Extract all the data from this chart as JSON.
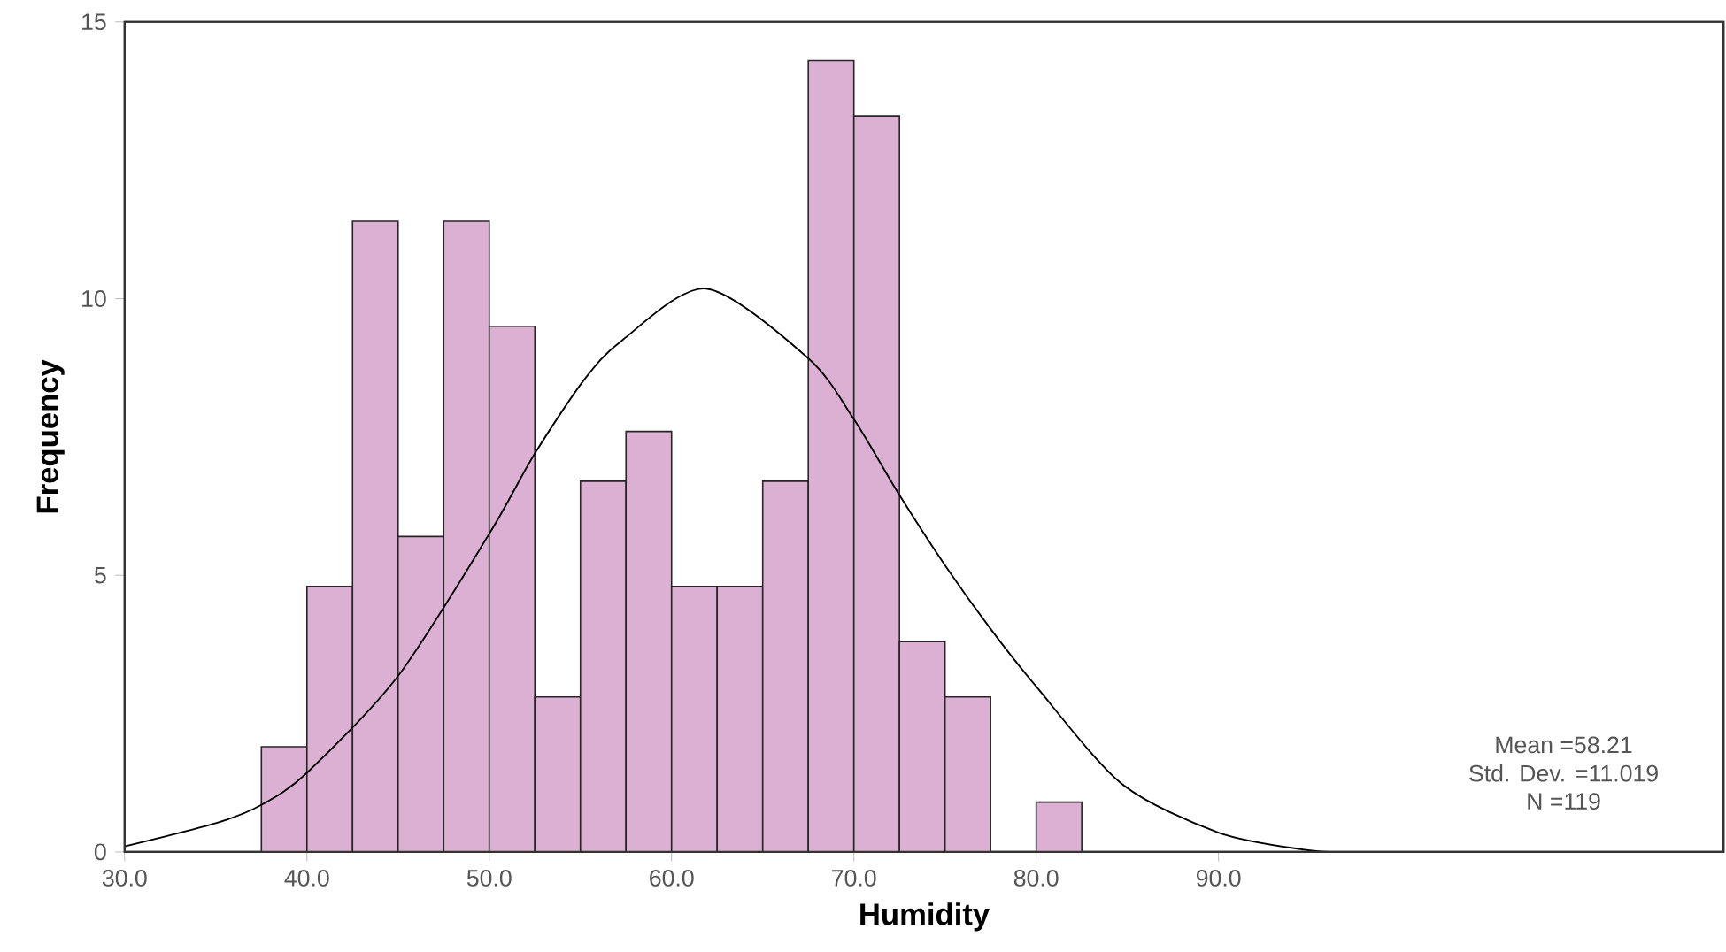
{
  "chart_data": {
    "type": "histogram",
    "xlabel": "Humidity",
    "ylabel": "Frequency",
    "bins": [
      37.5,
      40,
      42.5,
      45,
      47.5,
      50,
      52.5,
      55,
      57.5,
      60,
      62.5,
      65,
      67.5,
      70,
      72.5,
      75,
      77.5,
      80,
      82.5
    ],
    "values": [
      1.9,
      4.8,
      11.4,
      5.7,
      11.4,
      9.5,
      2.8,
      6.7,
      7.6,
      4.8,
      4.8,
      6.7,
      14.3,
      13.3,
      3.8,
      2.8,
      0,
      0.9
    ],
    "color": "#dcb0d2",
    "series": [
      {
        "type": "line",
        "color": "#000000",
        "x": [
          30,
          35,
          37.5,
          40,
          45,
          50,
          52.5,
          55.2,
          57.3,
          61.9,
          67.5,
          70,
          72.5,
          75,
          77.5,
          80,
          84.7,
          90,
          94.7,
          97
        ],
        "values": [
          0.1,
          0.52,
          0.85,
          1.43,
          3.18,
          5.75,
          7.2,
          8.53,
          9.25,
          10.18,
          8.92,
          7.82,
          6.45,
          5.18,
          4.03,
          2.99,
          1.23,
          0.35,
          0.04,
          0
        ]
      }
    ],
    "xlim": [
      30,
      117.7
    ],
    "ylim": [
      0,
      15
    ],
    "xticks": [
      {
        "value": 30,
        "label": "30.0"
      },
      {
        "value": 40,
        "label": "40.0"
      },
      {
        "value": 50,
        "label": "50.0"
      },
      {
        "value": 60,
        "label": "60.0"
      },
      {
        "value": 70,
        "label": "70.0"
      },
      {
        "value": 80,
        "label": "80.0"
      },
      {
        "value": 90,
        "label": "90.0"
      }
    ],
    "yticks": [
      0,
      5,
      10,
      15
    ],
    "annotations": [
      "Mean =58.21",
      "Std. Dev. =11.019",
      "N =119"
    ]
  }
}
